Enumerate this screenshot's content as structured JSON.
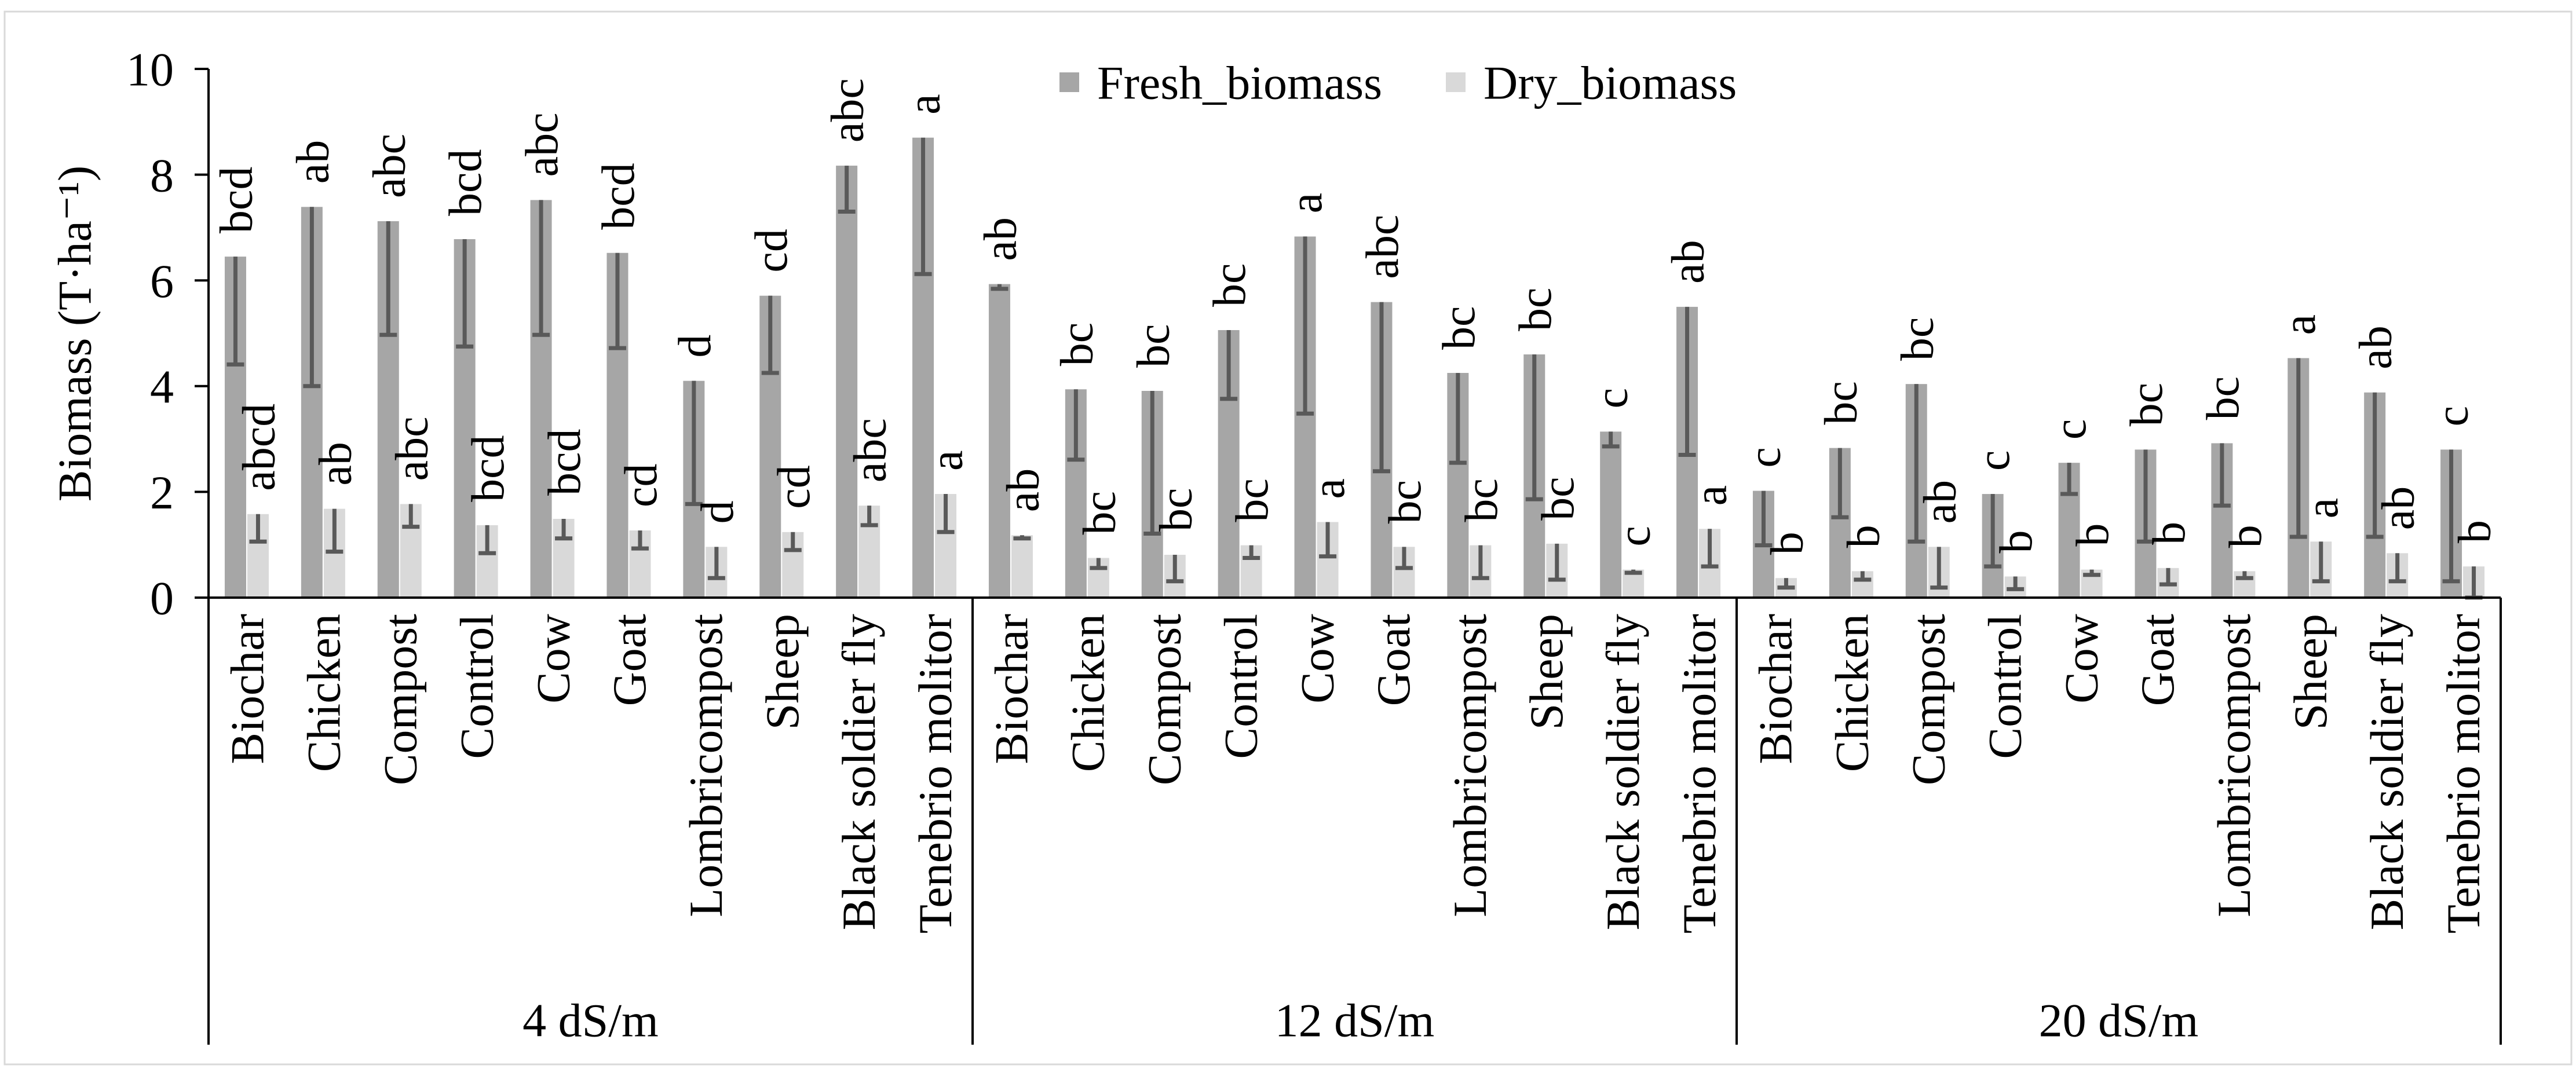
{
  "chart_data": {
    "type": "bar",
    "ylabel": "Biomass (T·ha⁻¹)",
    "ylim": [
      0,
      10
    ],
    "yticks": [
      0,
      2,
      4,
      6,
      8,
      10
    ],
    "grid": false,
    "legend_position": "top",
    "groups": [
      "4 dS/m",
      "12 dS/m",
      "20 dS/m"
    ],
    "categories": [
      "Biochar",
      "Chicken",
      "Compost",
      "Control",
      "Cow",
      "Goat",
      "Lombricompost",
      "Sheep",
      "Black soldier fly",
      "Tenebrio molitor"
    ],
    "series": [
      {
        "name": "Fresh_biomass",
        "color": "#a6a6a6",
        "values": [
          [
            6.45,
            7.39,
            7.12,
            6.78,
            7.52,
            6.52,
            4.1,
            5.71,
            8.17,
            8.7
          ],
          [
            5.93,
            3.94,
            3.91,
            5.06,
            6.83,
            5.59,
            4.25,
            4.6,
            3.14,
            5.5
          ],
          [
            2.02,
            2.83,
            4.04,
            1.96,
            2.55,
            2.8,
            2.92,
            4.53,
            3.88,
            2.8
          ]
        ],
        "error_minus": [
          [
            2.04,
            3.39,
            2.15,
            2.03,
            2.55,
            1.8,
            2.33,
            1.46,
            0.87,
            2.58
          ],
          [
            0.09,
            1.33,
            2.7,
            1.3,
            3.35,
            3.2,
            1.7,
            2.74,
            0.28,
            2.8
          ],
          [
            1.03,
            1.31,
            2.98,
            1.37,
            0.59,
            1.74,
            1.18,
            3.38,
            2.73,
            2.49
          ]
        ],
        "letters": [
          [
            "bcd",
            "ab",
            "abc",
            "bcd",
            "abc",
            "bcd",
            "d",
            "cd",
            "abc",
            "a"
          ],
          [
            "ab",
            "bc",
            "bc",
            "bc",
            "a",
            "abc",
            "bc",
            "bc",
            "c",
            "ab"
          ],
          [
            "c",
            "bc",
            "bc",
            "c",
            "c",
            "bc",
            "bc",
            "a",
            "ab",
            "c"
          ]
        ]
      },
      {
        "name": "Dry_biomass",
        "color": "#d9d9d9",
        "values": [
          [
            1.58,
            1.68,
            1.77,
            1.37,
            1.49,
            1.27,
            0.96,
            1.24,
            1.74,
            1.96
          ],
          [
            1.18,
            0.75,
            0.81,
            0.99,
            1.43,
            0.96,
            0.99,
            1.02,
            0.53,
            1.3
          ],
          [
            0.37,
            0.5,
            0.96,
            0.4,
            0.53,
            0.56,
            0.5,
            1.06,
            0.84,
            0.59
          ]
        ],
        "error_minus": [
          [
            0.52,
            0.81,
            0.43,
            0.53,
            0.37,
            0.34,
            0.59,
            0.34,
            0.37,
            0.72
          ],
          [
            0.06,
            0.19,
            0.5,
            0.24,
            0.65,
            0.4,
            0.62,
            0.68,
            0.06,
            0.71
          ],
          [
            0.18,
            0.16,
            0.77,
            0.24,
            0.1,
            0.31,
            0.13,
            0.75,
            0.53,
            0.59
          ]
        ],
        "letters": [
          [
            "abcd",
            "ab",
            "abc",
            "bcd",
            "bcd",
            "cd",
            "d",
            "cd",
            "abc",
            "a"
          ],
          [
            "ab",
            "bc",
            "bc",
            "bc",
            "a",
            "bc",
            "bc",
            "bc",
            "c",
            "a"
          ],
          [
            "b",
            "b",
            "ab",
            "b",
            "b",
            "b",
            "b",
            "a",
            "ab",
            "b"
          ]
        ]
      }
    ]
  },
  "colors": {
    "error_bar": "#595959",
    "axis": "#000000",
    "frame": "#d9d9d9",
    "background": "#ffffff"
  }
}
